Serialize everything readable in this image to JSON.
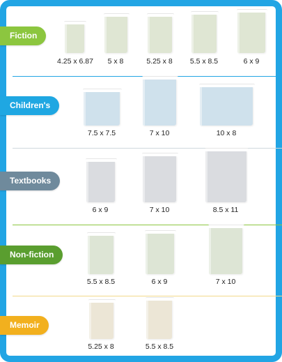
{
  "colors": {
    "frame": "#22a5e4",
    "fiction": "#8cc63f",
    "childrens": "#1fa7e2",
    "textbooks": "#6f8a9c",
    "nonfiction": "#5a9e2f",
    "memoir": "#f2b01e"
  },
  "categories": [
    {
      "label": "Fiction",
      "sizes": [
        "4.25 x 6.87",
        "5 x 8",
        "5.25 x 8",
        "5.5 x 8.5",
        "6 x 9"
      ]
    },
    {
      "label": "Children's",
      "sizes": [
        "7.5 x 7.5",
        "7 x 10",
        "10 x 8"
      ]
    },
    {
      "label": "Textbooks",
      "sizes": [
        "6 x 9",
        "7 x 10",
        "8.5 x 11"
      ]
    },
    {
      "label": "Non-fiction",
      "sizes": [
        "5.5 x 8.5",
        "6 x 9",
        "7 x 10"
      ]
    },
    {
      "label": "Memoir",
      "sizes": [
        "5.25 x 8",
        "5.5 x 8.5"
      ]
    }
  ]
}
